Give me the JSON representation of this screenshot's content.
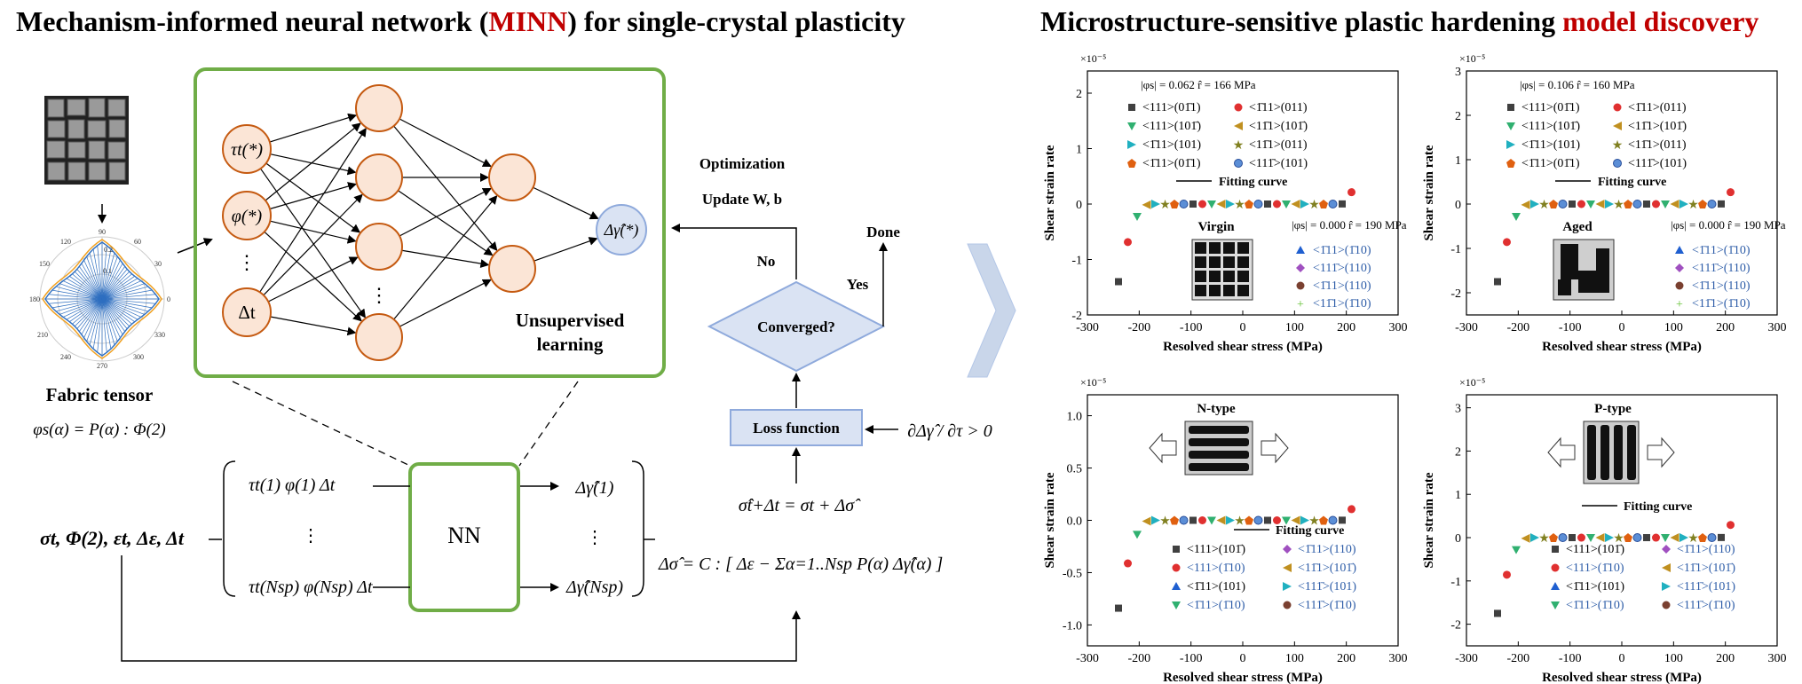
{
  "titles": {
    "left_a": "Mechanism-informed neural network (",
    "left_b": "MINN",
    "left_c": ") for single-crystal plasticity",
    "right_a": "Microstructure-sensitive plastic hardening ",
    "right_b": "model discovery"
  },
  "left": {
    "fabric_label": "Fabric tensor",
    "fabric_eq": "φs(α) = P(α) : Φ(2)",
    "polar_labels": [
      "90",
      "60",
      "30",
      "0",
      "330",
      "300",
      "270",
      "240",
      "210",
      "180",
      "150",
      "120",
      "0.2",
      "0.1"
    ],
    "inputs": [
      "τt(*)",
      "φ(*)",
      "⋮",
      "Δt"
    ],
    "hidden_dots": "⋮",
    "output": "Δγ̂(*)",
    "unsupervised": [
      "Unsupervised",
      "learning"
    ],
    "optimization": "Optimization",
    "update": "Update W, b",
    "no": "No",
    "yes": "Yes",
    "done": "Done",
    "converged": "Converged?",
    "loss": "Loss function",
    "constraint": "∂Δγ̂ / ∂τ > 0",
    "nn": "NN",
    "input_vars": "σt, Φ(2), εt, Δε, Δt",
    "matrix_rows": [
      "τt(1)   φ(1)   Δt",
      "⋮",
      "τt(Nsp)   φ(Nsp)   Δt"
    ],
    "outputs": [
      "Δγ̂(1)",
      "⋮",
      "Δγ̂(Nsp)"
    ],
    "update_eq": "σ̂t+Δt = σt + Δσ̂",
    "stress_eq": "Δσ̂ = C : [ Δε − Σα=1..Nsp P(α) Δγ̂(α) ]"
  },
  "colors": {
    "green": "#70ad47",
    "orange_fill": "#fbe5d6",
    "orange_stroke": "#c55a11",
    "blue_fill": "#dae3f3",
    "blue_stroke": "#8faadc",
    "curve": "#4a86e8",
    "red": "#c00000"
  },
  "panels": [
    {
      "id": "virgin",
      "y_exp": "×10⁻⁵",
      "yticks": [
        "2",
        "1",
        "0",
        "-1",
        "-2"
      ],
      "xticks": [
        "-300",
        "-200",
        "-100",
        "0",
        "100",
        "200",
        "300"
      ],
      "ylabel": "Shear strain rate",
      "xlabel": "Resolved shear stress (MPa)",
      "info1": "|φs| = 0.062   r̂ = 166 MPa",
      "legend1": [
        "<111>(01̄1)",
        "<1̄11>(011)",
        "<111>(101̄)",
        "<11̄1>(101̄)",
        "<1̄11>(101)",
        "<11̄1>(011)",
        "<1̄11>(01̄1)",
        "<111̄>(101)"
      ],
      "fitting": "Fitting curve",
      "tag": "Virgin",
      "info2": "|φs| = 0.000   r̂ = 190 MPa",
      "legend2": [
        "<1̄11>(1̄10)",
        "<111̄>(110)",
        "<1̄11>(110)",
        "<11̄1>(1̄10)"
      ]
    },
    {
      "id": "aged",
      "y_exp": "×10⁻⁵",
      "yticks": [
        "3",
        "2",
        "1",
        "0",
        "-1",
        "-2"
      ],
      "xticks": [
        "-300",
        "-200",
        "-100",
        "0",
        "100",
        "200",
        "300"
      ],
      "ylabel": "Shear strain rate",
      "xlabel": "Resolved shear stress (MPa)",
      "info1": "|φs| = 0.106   r̂ = 160 MPa",
      "legend1": [
        "<111>(01̄1)",
        "<1̄11>(011)",
        "<111>(101̄)",
        "<11̄1>(101̄)",
        "<1̄11>(101)",
        "<11̄1>(011)",
        "<1̄11>(01̄1)",
        "<111̄>(101)"
      ],
      "fitting": "Fitting curve",
      "tag": "Aged",
      "info2": "|φs| = 0.000   r̂ = 190 MPa",
      "legend2": [
        "<1̄11>(1̄10)",
        "<111̄>(110)",
        "<1̄11>(110)",
        "<11̄1>(1̄10)"
      ]
    },
    {
      "id": "ntype",
      "y_exp": "×10⁻⁵",
      "yticks": [
        "1.0",
        "0.5",
        "0.0",
        "-0.5",
        "-1.0"
      ],
      "xticks": [
        "-300",
        "-200",
        "-100",
        "0",
        "100",
        "200",
        "300"
      ],
      "ylabel": "Shear strain rate",
      "xlabel": "Resolved shear stress (MPa)",
      "tag": "N-type",
      "fitting": "Fitting curve",
      "legend": [
        "<111>(101̄)",
        "<1̄11>(110)",
        "<111>(1̄10)",
        "<11̄1>(101̄)",
        "<1̄11>(101)",
        "<111̄>(101)",
        "<1̄11>(1̄10)",
        "<111̄>(1̄10)"
      ]
    },
    {
      "id": "ptype",
      "y_exp": "×10⁻⁵",
      "yticks": [
        "3",
        "2",
        "1",
        "0",
        "-1",
        "-2"
      ],
      "xticks": [
        "-300",
        "-200",
        "-100",
        "0",
        "100",
        "200",
        "300"
      ],
      "ylabel": "Shear strain rate",
      "xlabel": "Resolved shear stress (MPa)",
      "tag": "P-type",
      "fitting": "Fitting curve",
      "legend": [
        "<111>(101̄)",
        "<1̄11>(110)",
        "<111>(1̄10)",
        "<11̄1>(101̄)",
        "<1̄11>(101)",
        "<111̄>(101)",
        "<1̄11>(1̄10)",
        "<111̄>(1̄10)"
      ]
    }
  ]
}
